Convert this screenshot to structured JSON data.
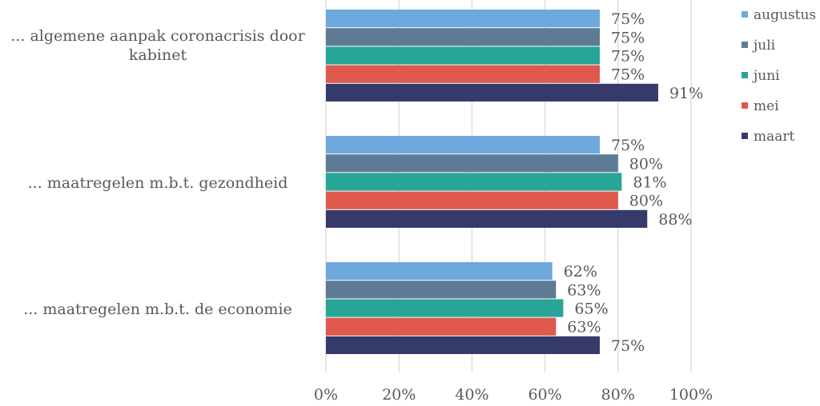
{
  "chart_data": {
    "type": "bar",
    "orientation": "horizontal",
    "categories": [
      "... algemene aanpak coronacrisis door kabinet",
      "... maatregelen m.b.t. gezondheid",
      "... maatregelen m.b.t. de economie"
    ],
    "category_lines": [
      [
        "... algemene aanpak coronacrisis door",
        "kabinet"
      ],
      [
        "... maatregelen m.b.t. gezondheid"
      ],
      [
        "... maatregelen m.b.t. de economie"
      ]
    ],
    "series": [
      {
        "name": "augustus",
        "color": "#6fa8dc",
        "values": [
          75,
          75,
          62
        ]
      },
      {
        "name": "juli",
        "color": "#5e7b95",
        "values": [
          75,
          80,
          63
        ]
      },
      {
        "name": "juni",
        "color": "#27a596",
        "values": [
          75,
          81,
          65
        ]
      },
      {
        "name": "mei",
        "color": "#e0594d",
        "values": [
          75,
          80,
          63
        ]
      },
      {
        "name": "maart",
        "color": "#363a6b",
        "values": [
          91,
          88,
          75
        ]
      }
    ],
    "value_suffix": "%",
    "xlim": [
      0,
      100
    ],
    "xticks": [
      0,
      20,
      40,
      60,
      80,
      100
    ],
    "xtick_labels": [
      "0%",
      "20%",
      "40%",
      "60%",
      "80%",
      "100%"
    ],
    "grid": true,
    "legend_position": "right",
    "title": "",
    "xlabel": "",
    "ylabel": ""
  }
}
